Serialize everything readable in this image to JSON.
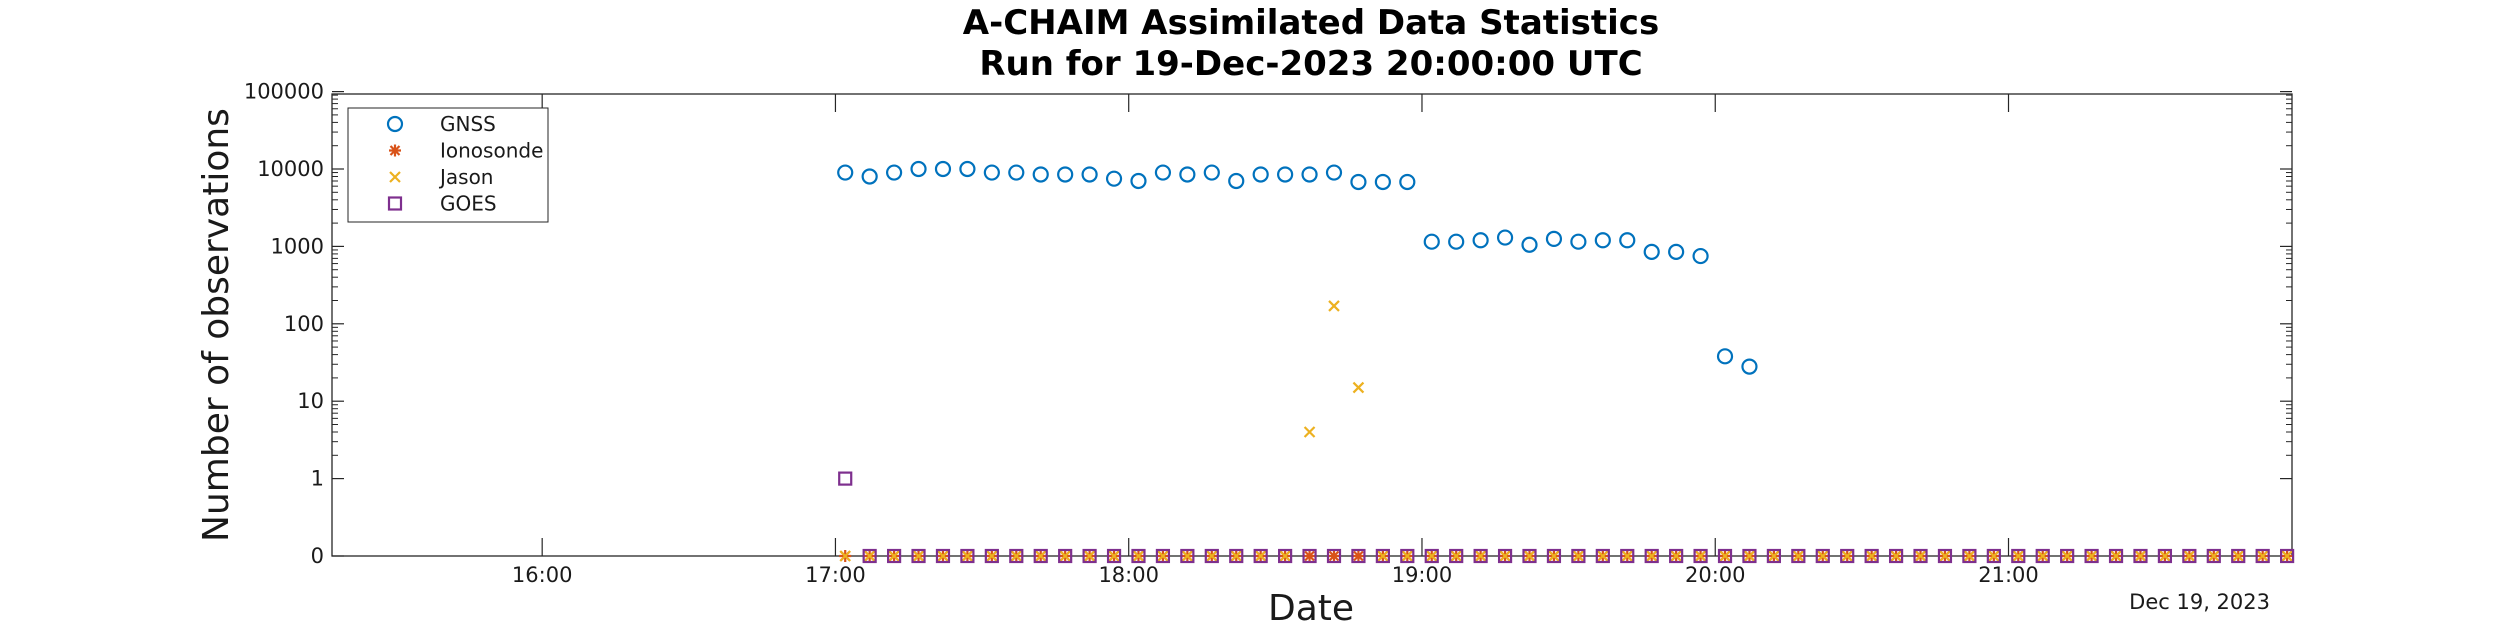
{
  "chart_data": {
    "type": "scatter",
    "title": "A-CHAIM Assimilated Data Statistics",
    "subtitle": "Run for 19-Dec-2023 20:00:00 UTC",
    "xlabel": "Date",
    "ylabel": "Number of observations",
    "date_annotation": "Dec 19, 2023",
    "y_scale": "log",
    "ylim": [
      0,
      100000
    ],
    "y_ticks": [
      {
        "value": 0,
        "label": "0"
      },
      {
        "value": 1,
        "label": "1"
      },
      {
        "value": 10,
        "label": "10"
      },
      {
        "value": 100,
        "label": "100"
      },
      {
        "value": 1000,
        "label": "1000"
      },
      {
        "value": 10000,
        "label": "10000"
      },
      {
        "value": 100000,
        "label": "100000"
      }
    ],
    "xlim": [
      "15:17",
      "21:58"
    ],
    "x_ticks": [
      "16:00",
      "17:00",
      "18:00",
      "19:00",
      "20:00",
      "21:00"
    ],
    "grid": false,
    "legend_position": "top-left",
    "legend": [
      "GNSS",
      "Ionosonde",
      "Jason",
      "GOES"
    ],
    "series": [
      {
        "name": "GNSS",
        "marker": "circle",
        "color": "#0072BD",
        "x": [
          "17:02",
          "17:07",
          "17:12",
          "17:17",
          "17:22",
          "17:27",
          "17:32",
          "17:37",
          "17:42",
          "17:47",
          "17:52",
          "17:57",
          "18:02",
          "18:07",
          "18:12",
          "18:17",
          "18:22",
          "18:27",
          "18:32",
          "18:37",
          "18:42",
          "18:47",
          "18:52",
          "18:57",
          "19:02",
          "19:07",
          "19:12",
          "19:17",
          "19:22",
          "19:27",
          "19:32",
          "19:37",
          "19:42",
          "19:47",
          "19:52",
          "19:57",
          "20:02",
          "20:07"
        ],
        "y": [
          9000,
          8000,
          9000,
          10000,
          10000,
          10000,
          9000,
          9000,
          8500,
          8500,
          8500,
          7500,
          7000,
          9000,
          8500,
          9000,
          7000,
          8500,
          8500,
          8500,
          9000,
          6800,
          6800,
          6800,
          1150,
          1150,
          1200,
          1300,
          1050,
          1250,
          1150,
          1200,
          1200,
          850,
          850,
          750,
          38,
          28
        ]
      },
      {
        "name": "Ionosonde",
        "marker": "asterisk",
        "color": "#D95319",
        "x": [
          "17:02",
          "17:07",
          "17:12",
          "17:17",
          "17:22",
          "17:27",
          "17:32",
          "17:37",
          "17:42",
          "17:47",
          "17:52",
          "17:57",
          "18:02",
          "18:07",
          "18:12",
          "18:17",
          "18:22",
          "18:27",
          "18:32",
          "18:37",
          "18:42",
          "18:47",
          "18:52",
          "18:57",
          "19:02",
          "19:07",
          "19:12",
          "19:17",
          "19:22",
          "19:27",
          "19:32",
          "19:37",
          "19:42",
          "19:47",
          "19:52",
          "19:57",
          "20:02",
          "20:07",
          "20:12",
          "20:17",
          "20:22",
          "20:27",
          "20:32",
          "20:37",
          "20:42",
          "20:47",
          "20:52",
          "20:57",
          "21:02",
          "21:07",
          "21:12",
          "21:17",
          "21:22",
          "21:27",
          "21:32",
          "21:37",
          "21:42",
          "21:47",
          "21:52",
          "21:57"
        ],
        "y": [
          0,
          0,
          0,
          0,
          0,
          0,
          0,
          0,
          0,
          0,
          0,
          0,
          0,
          0,
          0,
          0,
          0,
          0,
          0,
          0,
          0,
          0,
          0,
          0,
          0,
          0,
          0,
          0,
          0,
          0,
          0,
          0,
          0,
          0,
          0,
          0,
          0,
          0,
          0,
          0,
          0,
          0,
          0,
          0,
          0,
          0,
          0,
          0,
          0,
          0,
          0,
          0,
          0,
          0,
          0,
          0,
          0,
          0,
          0,
          0
        ]
      },
      {
        "name": "Jason",
        "marker": "x",
        "color": "#EDB120",
        "x": [
          "17:02",
          "17:07",
          "17:12",
          "17:17",
          "17:22",
          "17:27",
          "17:32",
          "17:37",
          "17:42",
          "17:47",
          "17:52",
          "17:57",
          "18:02",
          "18:07",
          "18:12",
          "18:17",
          "18:22",
          "18:27",
          "18:32",
          "18:37",
          "18:42",
          "18:47",
          "18:52",
          "18:57",
          "19:02",
          "19:07",
          "19:12",
          "19:17",
          "19:22",
          "19:27",
          "19:32",
          "19:37",
          "19:42",
          "19:47",
          "19:52",
          "19:57",
          "20:02",
          "20:07",
          "20:12",
          "20:17",
          "20:22",
          "20:27",
          "20:32",
          "20:37",
          "20:42",
          "20:47",
          "20:52",
          "20:57",
          "21:02",
          "21:07",
          "21:12",
          "21:17",
          "21:22",
          "21:27",
          "21:32",
          "21:37",
          "21:42",
          "21:47",
          "21:52",
          "21:57"
        ],
        "y": [
          0,
          0,
          0,
          0,
          0,
          0,
          0,
          0,
          0,
          0,
          0,
          0,
          0,
          0,
          0,
          0,
          0,
          0,
          0,
          4,
          170,
          15,
          0,
          0,
          0,
          0,
          0,
          0,
          0,
          0,
          0,
          0,
          0,
          0,
          0,
          0,
          0,
          0,
          0,
          0,
          0,
          0,
          0,
          0,
          0,
          0,
          0,
          0,
          0,
          0,
          0,
          0,
          0,
          0,
          0,
          0,
          0,
          0,
          0,
          0
        ]
      },
      {
        "name": "GOES",
        "marker": "square",
        "color": "#7E2F8E",
        "x": [
          "17:02",
          "17:07",
          "17:12",
          "17:17",
          "17:22",
          "17:27",
          "17:32",
          "17:37",
          "17:42",
          "17:47",
          "17:52",
          "17:57",
          "18:02",
          "18:07",
          "18:12",
          "18:17",
          "18:22",
          "18:27",
          "18:32",
          "18:37",
          "18:42",
          "18:47",
          "18:52",
          "18:57",
          "19:02",
          "19:07",
          "19:12",
          "19:17",
          "19:22",
          "19:27",
          "19:32",
          "19:37",
          "19:42",
          "19:47",
          "19:52",
          "19:57",
          "20:02",
          "20:07",
          "20:12",
          "20:17",
          "20:22",
          "20:27",
          "20:32",
          "20:37",
          "20:42",
          "20:47",
          "20:52",
          "20:57",
          "21:02",
          "21:07",
          "21:12",
          "21:17",
          "21:22",
          "21:27",
          "21:32",
          "21:37",
          "21:42",
          "21:47",
          "21:52",
          "21:57"
        ],
        "y": [
          1,
          0,
          0,
          0,
          0,
          0,
          0,
          0,
          0,
          0,
          0,
          0,
          0,
          0,
          0,
          0,
          0,
          0,
          0,
          0,
          0,
          0,
          0,
          0,
          0,
          0,
          0,
          0,
          0,
          0,
          0,
          0,
          0,
          0,
          0,
          0,
          0,
          0,
          0,
          0,
          0,
          0,
          0,
          0,
          0,
          0,
          0,
          0,
          0,
          0,
          0,
          0,
          0,
          0,
          0,
          0,
          0,
          0,
          0,
          0
        ]
      }
    ]
  }
}
